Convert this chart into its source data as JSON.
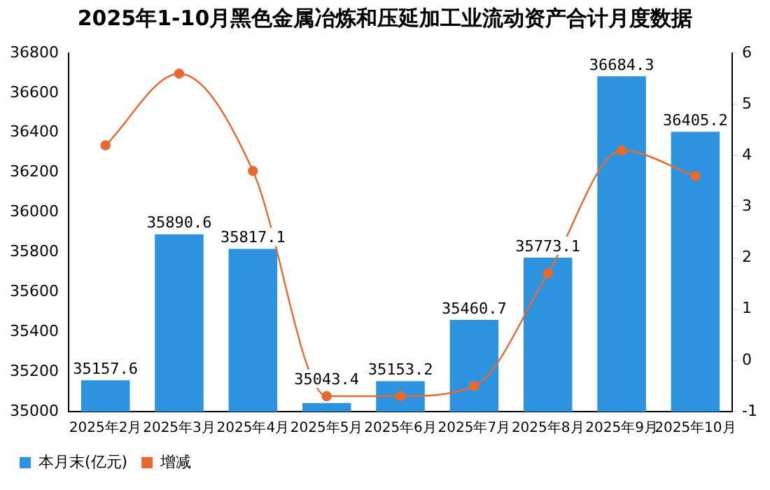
{
  "chart_data": {
    "type": "bar",
    "title": "2025年1-10月黑色金属冶炼和压延加工业流动资产合计月度数据",
    "categories": [
      "2025年2月",
      "2025年3月",
      "2025年4月",
      "2025年5月",
      "2025年6月",
      "2025年7月",
      "2025年8月",
      "2025年9月",
      "2025年10月"
    ],
    "series": [
      {
        "name": "本月末(亿元)",
        "color": "#2e93de",
        "values": [
          35157.6,
          35890.6,
          35817.1,
          35043.4,
          35153.2,
          35460.7,
          35773.1,
          36684.3,
          36405.2
        ],
        "value_labels": [
          "35157.6",
          "35890.6",
          "35817.1",
          "35043.4",
          "35153.2",
          "35460.7",
          "35773.1",
          "36684.3",
          "36405.2"
        ]
      },
      {
        "name": "增减",
        "type": "line",
        "axis": "y2",
        "color": "#e8692f",
        "values": [
          4.2,
          5.6,
          3.7,
          -0.7,
          -0.7,
          -0.5,
          1.7,
          4.1,
          3.6
        ]
      }
    ],
    "ylim": [
      35000,
      36800
    ],
    "yticks": [
      35000,
      35200,
      35400,
      35600,
      35800,
      36000,
      36200,
      36400,
      36600,
      36800
    ],
    "y2lim": [
      -1,
      6
    ],
    "y2ticks": [
      -1,
      0,
      1,
      2,
      3,
      4,
      5,
      6
    ],
    "marker": "circle",
    "grid": false,
    "legend": "bottom left"
  }
}
